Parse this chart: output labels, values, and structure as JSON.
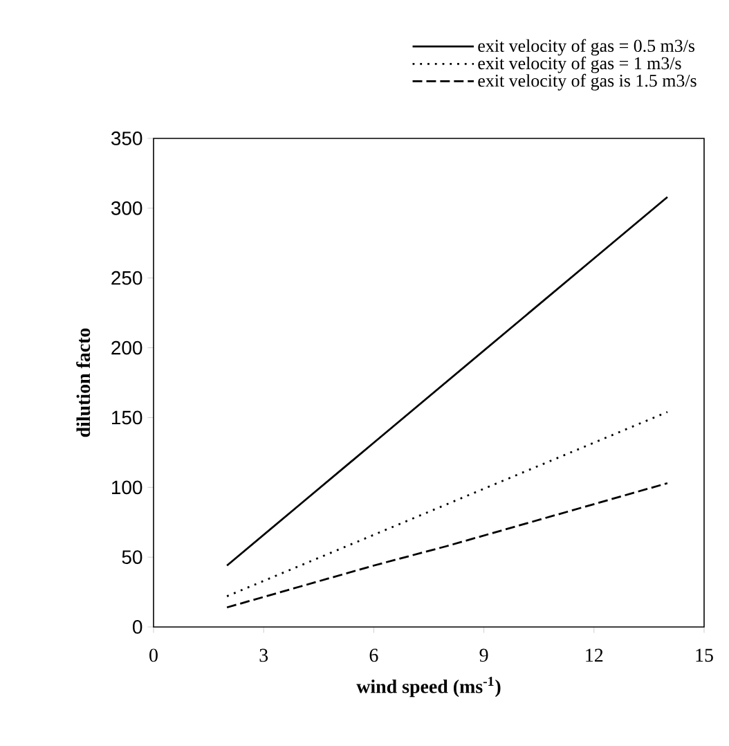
{
  "chart_data": {
    "type": "line",
    "xlabel": "wind speed (ms$^{-1}$)",
    "ylabel": "dilution facto",
    "x": [
      2,
      4,
      6,
      8,
      10,
      12,
      14
    ],
    "series": [
      {
        "name": "exit velocity of gas = 0.5 m3/s",
        "color": "#000000",
        "line_style": "solid",
        "values": [
          44,
          88,
          132,
          176,
          220,
          264,
          308
        ]
      },
      {
        "name": "exit velocity of gas = 1 m3/s",
        "color": "#000000",
        "line_style": "dotted",
        "values": [
          22,
          44,
          66,
          88,
          110,
          132,
          154
        ]
      },
      {
        "name": "exit velocity of gas is 1.5 m3/s",
        "color": "#000000",
        "line_style": "dashed",
        "values": [
          14,
          29,
          44,
          58,
          73,
          88,
          103
        ]
      }
    ],
    "xlim": [
      0,
      15
    ],
    "xticks": [
      0,
      3,
      6,
      9,
      12,
      15
    ],
    "ylim": [
      0,
      350
    ],
    "yticks": [
      0,
      50,
      100,
      150,
      200,
      250,
      300,
      350
    ],
    "grid": false,
    "legend": "top",
    "marker": "none"
  }
}
